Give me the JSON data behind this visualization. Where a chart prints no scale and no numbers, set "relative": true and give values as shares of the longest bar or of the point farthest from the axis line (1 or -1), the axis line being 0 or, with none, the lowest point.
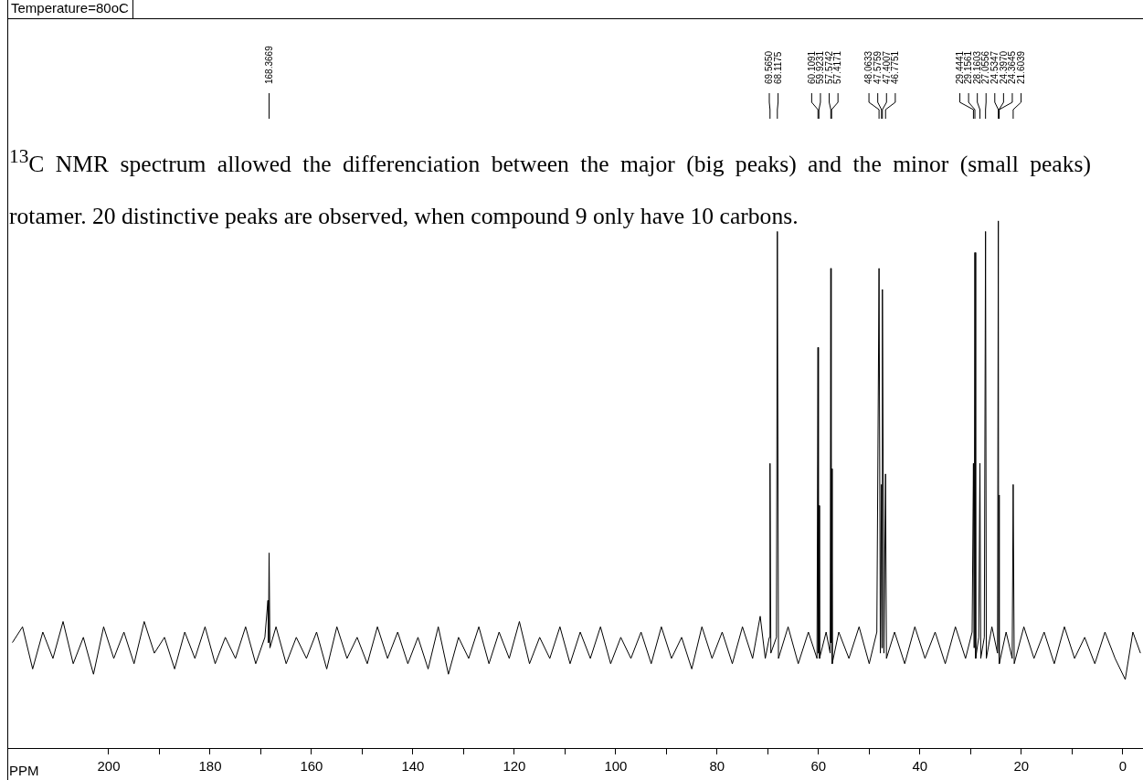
{
  "chart_data": {
    "type": "line",
    "relative": true,
    "title": "Temperature=80oC",
    "xlabel": "PPM",
    "marker": "none",
    "line_style": "solid",
    "xlim": [
      220,
      -4
    ],
    "xticks": [
      200,
      {
        "value": 190,
        "label": null
      },
      180,
      {
        "value": 170,
        "label": null
      },
      160,
      {
        "value": 150,
        "label": null
      },
      140,
      {
        "value": 130,
        "label": null
      },
      120,
      {
        "value": 110,
        "label": null
      },
      100,
      {
        "value": 90,
        "label": null
      },
      80,
      {
        "value": 70,
        "label": null
      },
      60,
      {
        "value": 50,
        "label": null
      },
      40,
      {
        "value": 30,
        "label": null
      },
      20,
      {
        "value": 10,
        "label": null
      },
      0
    ],
    "x": [
      219,
      217,
      215,
      213,
      211,
      209,
      207,
      205,
      203,
      201,
      199,
      197,
      195,
      193,
      191,
      189,
      187,
      185,
      183,
      181,
      179,
      177,
      175,
      173,
      171,
      169.2,
      168.6,
      168.5,
      168.3669,
      168.2,
      167,
      165,
      163,
      161,
      159,
      157,
      155,
      153,
      151,
      149,
      147,
      145,
      143,
      141,
      139,
      137,
      135,
      133,
      131,
      129,
      127,
      125,
      123,
      121,
      119,
      117,
      115,
      113,
      111,
      109,
      107,
      105,
      103,
      101,
      99,
      97,
      95,
      93,
      91,
      89,
      87,
      85,
      83,
      81,
      79,
      77,
      75,
      73,
      71.5,
      70.5,
      69.7,
      69.565,
      69.4,
      68.3,
      68.1175,
      67.9,
      66,
      64,
      62,
      60.3,
      60.1091,
      60.02,
      59.9231,
      59.8,
      58.5,
      57.7,
      57.5742,
      57.5,
      57.4171,
      57.3,
      56,
      54,
      52,
      50,
      48.5,
      48.0633,
      47.8,
      47.5759,
      47.49,
      47.4007,
      47.1,
      46.7751,
      46.6,
      45,
      43,
      41,
      39,
      37,
      35,
      33,
      31,
      29.7,
      29.4441,
      29.3,
      29.1561,
      29.0,
      28.4,
      28.1603,
      28.0,
      27.3,
      27.0556,
      26.9,
      25.8,
      24.7,
      24.5347,
      24.47,
      24.397,
      24.3,
      23,
      21.8,
      21.6039,
      21.4,
      19.5,
      17.5,
      15.5,
      13.5,
      11.5,
      9.5,
      7.5,
      5.5,
      3.5,
      1.5,
      -0.5,
      -2,
      -3.5
    ],
    "series": [
      {
        "color": "#000000",
        "values": [
          0.2,
          0.23,
          0.15,
          0.22,
          0.17,
          0.24,
          0.16,
          0.21,
          0.14,
          0.23,
          0.17,
          0.22,
          0.16,
          0.24,
          0.18,
          0.21,
          0.15,
          0.22,
          0.17,
          0.23,
          0.16,
          0.21,
          0.17,
          0.23,
          0.16,
          0.21,
          0.28,
          0.2,
          0.37,
          0.19,
          0.23,
          0.16,
          0.21,
          0.17,
          0.22,
          0.15,
          0.23,
          0.17,
          0.21,
          0.16,
          0.23,
          0.17,
          0.22,
          0.16,
          0.21,
          0.15,
          0.23,
          0.14,
          0.21,
          0.17,
          0.23,
          0.16,
          0.22,
          0.17,
          0.24,
          0.16,
          0.21,
          0.17,
          0.23,
          0.16,
          0.22,
          0.17,
          0.23,
          0.16,
          0.21,
          0.17,
          0.22,
          0.16,
          0.23,
          0.17,
          0.21,
          0.15,
          0.23,
          0.17,
          0.22,
          0.16,
          0.23,
          0.17,
          0.25,
          0.17,
          0.21,
          0.54,
          0.18,
          0.21,
          0.98,
          0.17,
          0.23,
          0.16,
          0.22,
          0.17,
          0.76,
          0.18,
          0.46,
          0.17,
          0.22,
          0.18,
          0.91,
          0.2,
          0.53,
          0.16,
          0.22,
          0.17,
          0.23,
          0.16,
          0.22,
          0.91,
          0.18,
          0.5,
          0.19,
          0.87,
          0.18,
          0.52,
          0.17,
          0.22,
          0.16,
          0.23,
          0.17,
          0.22,
          0.16,
          0.23,
          0.17,
          0.22,
          0.54,
          0.19,
          0.94,
          0.17,
          0.21,
          0.54,
          0.17,
          0.21,
          0.98,
          0.17,
          0.23,
          0.18,
          1,
          0.2,
          0.48,
          0.16,
          0.22,
          0.17,
          0.5,
          0.16,
          0.23,
          0.17,
          0.22,
          0.16,
          0.23,
          0.17,
          0.21,
          0.16,
          0.22,
          0.17,
          0.13,
          0.22,
          0.18
        ]
      }
    ],
    "annotations": [
      {
        "text": "168.3669",
        "x": 168.3669
      },
      {
        "text": "69.5650",
        "x": 69.565
      },
      {
        "text": "68.1175",
        "x": 68.1175
      },
      {
        "text": "60.1091",
        "x": 60.1091
      },
      {
        "text": "59.9231",
        "x": 59.9231
      },
      {
        "text": "57.5742",
        "x": 57.5742
      },
      {
        "text": "57.4171",
        "x": 57.4171
      },
      {
        "text": "48.0633",
        "x": 48.0633
      },
      {
        "text": "47.5759",
        "x": 47.5759
      },
      {
        "text": "47.4007",
        "x": 47.4007
      },
      {
        "text": "46.7751",
        "x": 46.7751
      },
      {
        "text": "29.4441",
        "x": 29.4441
      },
      {
        "text": "29.1561",
        "x": 29.1561
      },
      {
        "text": "28.1603",
        "x": 28.1603
      },
      {
        "text": "27.0556",
        "x": 27.0556
      },
      {
        "text": "24.5347",
        "x": 24.5347
      },
      {
        "text": "24.3970",
        "x": 24.397
      },
      {
        "text": "24.3645",
        "x": 24.3645
      },
      {
        "text": "21.6039",
        "x": 21.6039
      },
      "$^{13}$C NMR spectrum allowed the differenciation between the major (big peaks) and the minor (small peaks) rotamer. 20 distinctive peaks are observed, when compound 9 only have 10 carbons."
    ]
  }
}
